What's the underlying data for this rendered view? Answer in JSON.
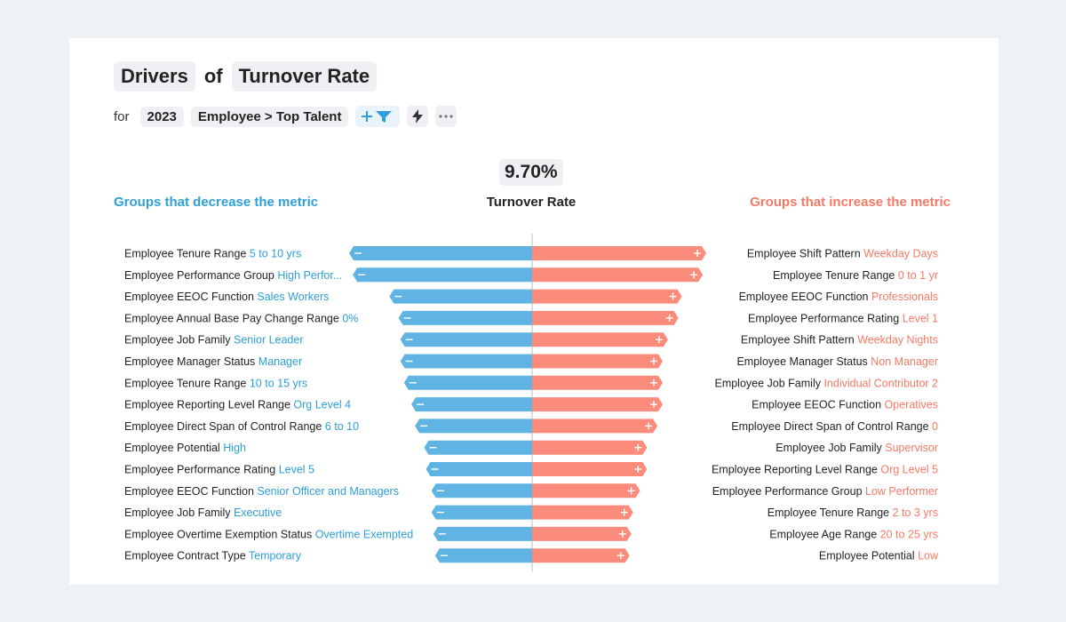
{
  "header": {
    "title_left": "Drivers",
    "title_of": "of",
    "title_metric": "Turnover Rate",
    "for_label": "for",
    "year_chip": "2023",
    "population_chip": "Employee > Top Talent",
    "add_filter_icon": "add-filter-icon",
    "lightning_icon": "lightning-icon",
    "more_icon": "more-options-icon"
  },
  "metric": {
    "value": "9.70%",
    "label": "Turnover Rate"
  },
  "colors": {
    "decrease": "#5fb4e4",
    "decrease_text": "#2e9fd8",
    "increase": "#fb8c7c",
    "increase_text": "#f57a66",
    "axis": "#b5bcc6"
  },
  "chart_data": {
    "type": "bar",
    "title": "Drivers of Turnover Rate",
    "headings": {
      "decrease": "Groups that decrease the metric",
      "increase": "Groups that increase the metric"
    },
    "units": "relative impact (estimated, 0-100)",
    "decrease": [
      {
        "attribute": "Employee Tenure Range",
        "group": "5 to 10 yrs",
        "value": 100
      },
      {
        "attribute": "Employee Performance Group",
        "group": "High Perfor...",
        "value": 98
      },
      {
        "attribute": "Employee EEOC Function",
        "group": "Sales Workers",
        "value": 78
      },
      {
        "attribute": "Employee Annual Base Pay Change Range",
        "group": "0%",
        "value": 73
      },
      {
        "attribute": "Employee Job Family",
        "group": "Senior Leader",
        "value": 72
      },
      {
        "attribute": "Employee Manager Status",
        "group": "Manager",
        "value": 72
      },
      {
        "attribute": "Employee Tenure Range",
        "group": "10 to 15 yrs",
        "value": 70
      },
      {
        "attribute": "Employee Reporting Level Range",
        "group": "Org Level 4",
        "value": 66
      },
      {
        "attribute": "Employee Direct Span of Control Range",
        "group": "6 to 10",
        "value": 64
      },
      {
        "attribute": "Employee Potential",
        "group": "High",
        "value": 59
      },
      {
        "attribute": "Employee Performance Rating",
        "group": "Level 5",
        "value": 58
      },
      {
        "attribute": "Employee EEOC Function",
        "group": "Senior Officer and Managers",
        "value": 55
      },
      {
        "attribute": "Employee Job Family",
        "group": "Executive",
        "value": 55
      },
      {
        "attribute": "Employee Overtime Exemption Status",
        "group": "Overtime Exempted",
        "value": 54
      },
      {
        "attribute": "Employee Contract Type",
        "group": "Temporary",
        "value": 53
      }
    ],
    "increase": [
      {
        "attribute": "Employee Shift Pattern",
        "group": "Weekday Days",
        "value": 100
      },
      {
        "attribute": "Employee Tenure Range",
        "group": "0 to 1 yr",
        "value": 98
      },
      {
        "attribute": "Employee EEOC Function",
        "group": "Professionals",
        "value": 86
      },
      {
        "attribute": "Employee Performance Rating",
        "group": "Level 1",
        "value": 84
      },
      {
        "attribute": "Employee Shift Pattern",
        "group": "Weekday Nights",
        "value": 78
      },
      {
        "attribute": "Employee Manager Status",
        "group": "Non Manager",
        "value": 75
      },
      {
        "attribute": "Employee Job Family",
        "group": "Individual Contributor 2",
        "value": 75
      },
      {
        "attribute": "Employee EEOC Function",
        "group": "Operatives",
        "value": 75
      },
      {
        "attribute": "Employee Direct Span of Control Range",
        "group": "0",
        "value": 72
      },
      {
        "attribute": "Employee Job Family",
        "group": "Supervisor",
        "value": 66
      },
      {
        "attribute": "Employee Reporting Level Range",
        "group": "Org Level 5",
        "value": 66
      },
      {
        "attribute": "Employee Performance Group",
        "group": "Low Performer",
        "value": 62
      },
      {
        "attribute": "Employee Tenure Range",
        "group": "2 to 3 yrs",
        "value": 58
      },
      {
        "attribute": "Employee Age Range",
        "group": "20 to 25 yrs",
        "value": 57
      },
      {
        "attribute": "Employee Potential",
        "group": "Low",
        "value": 56
      }
    ]
  }
}
